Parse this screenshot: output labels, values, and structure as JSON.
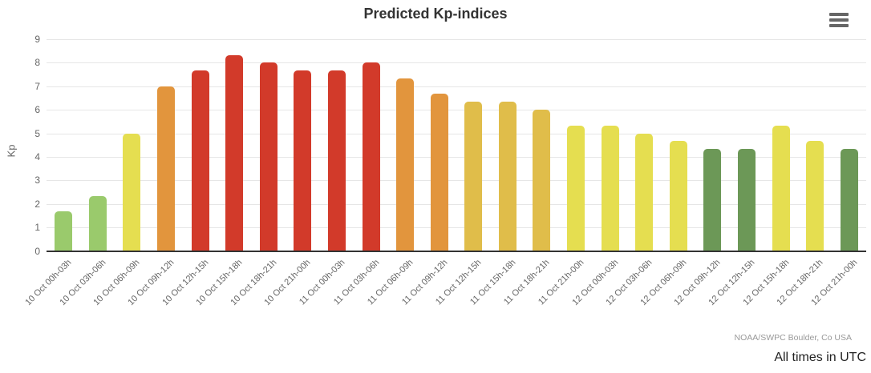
{
  "header": {
    "title": "Predicted Kp-indices"
  },
  "toolbar": {
    "export_menu": "context-menu"
  },
  "chart_data": {
    "type": "bar",
    "title": "Predicted Kp-indices",
    "xlabel": "",
    "ylabel": "Kp",
    "ylim": [
      0,
      9
    ],
    "yticks": [
      0,
      1,
      2,
      3,
      4,
      5,
      6,
      7,
      8,
      9
    ],
    "grid": true,
    "legend": false,
    "categories": [
      "10 Oct 00h-03h",
      "10 Oct 03h-06h",
      "10 Oct 06h-09h",
      "10 Oct 09h-12h",
      "10 Oct 12h-15h",
      "10 Oct 15h-18h",
      "10 Oct 18h-21h",
      "10 Oct 21h-00h",
      "11 Oct 00h-03h",
      "11 Oct 03h-06h",
      "11 Oct 06h-09h",
      "11 Oct 09h-12h",
      "11 Oct 12h-15h",
      "11 Oct 15h-18h",
      "11 Oct 18h-21h",
      "11 Oct 21h-00h",
      "12 Oct 00h-03h",
      "12 Oct 03h-06h",
      "12 Oct 06h-09h",
      "12 Oct 09h-12h",
      "12 Oct 12h-15h",
      "12 Oct 15h-18h",
      "12 Oct 18h-21h",
      "12 Oct 21h-00h"
    ],
    "values": [
      1.67,
      2.33,
      5.0,
      7.0,
      7.67,
      8.33,
      8.0,
      7.67,
      7.67,
      8.0,
      7.33,
      6.67,
      6.33,
      6.33,
      6.0,
      5.33,
      5.33,
      5.0,
      4.67,
      4.33,
      4.33,
      5.33,
      4.67,
      4.33
    ],
    "point_colors": [
      "#9aca6c",
      "#9aca6c",
      "#e5de50",
      "#e2953d",
      "#d23a2a",
      "#d23a2a",
      "#d23a2a",
      "#d23a2a",
      "#d23a2a",
      "#d23a2a",
      "#e2953d",
      "#e2953d",
      "#e0bd4a",
      "#e0bd4a",
      "#e0bd4a",
      "#e5de50",
      "#e5de50",
      "#e5de50",
      "#e5de50",
      "#6c9857",
      "#6c9857",
      "#e5de50",
      "#e5de50",
      "#6c9857"
    ],
    "palette": {
      "quiet_green": "#9aca6c",
      "active_dark_green": "#6c9857",
      "g1_yellow": "#e5de50",
      "g2_gold": "#e0bd4a",
      "g3_orange": "#e2953d",
      "g4_red": "#d23a2a",
      "gridline": "#e6e6e6",
      "axis_line": "#333333",
      "tick_label": "#666666",
      "title_text": "#333333"
    }
  },
  "footer": {
    "credits": "NOAA/SWPC Boulder, Co USA",
    "note": "All times in UTC"
  }
}
